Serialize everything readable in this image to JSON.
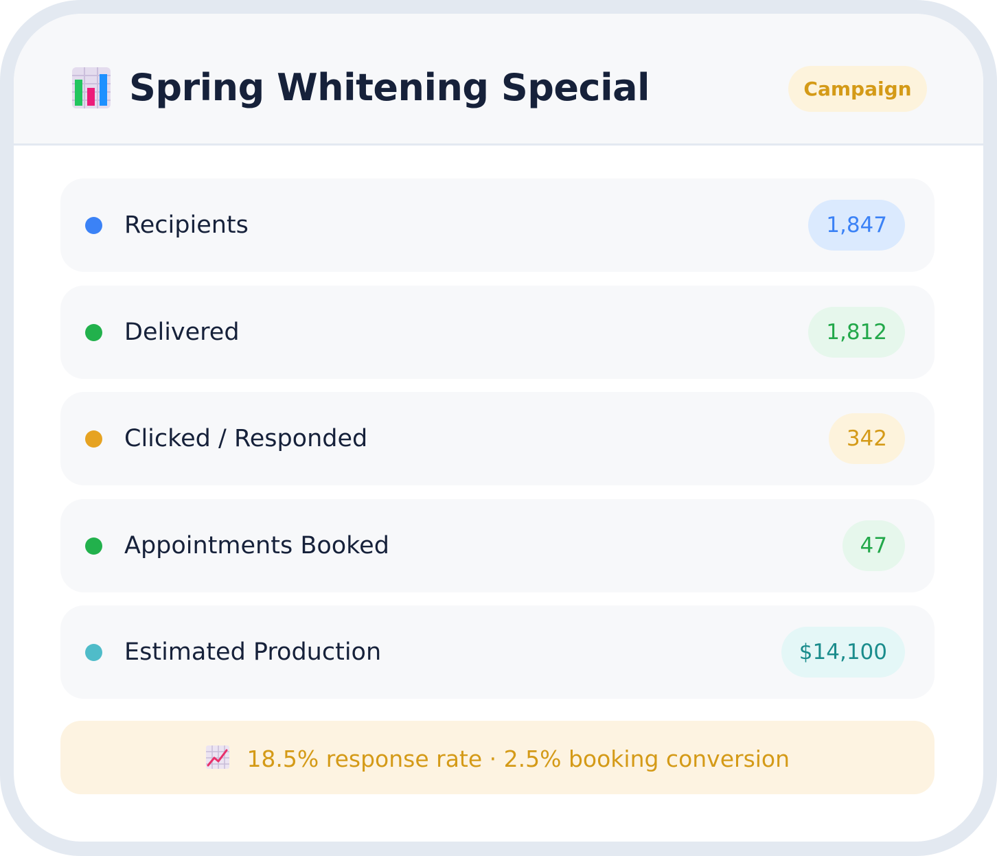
{
  "header": {
    "icon": "bar-chart-icon",
    "title": "Spring Whitening Special",
    "badge": "Campaign",
    "badge_color": "#d49a17"
  },
  "metrics": [
    {
      "label": "Recipients",
      "value": "1,847",
      "dot_color": "#3b82f6",
      "value_color": "#3b82f6",
      "value_bg": "#dbeafe"
    },
    {
      "label": "Delivered",
      "value": "1,812",
      "dot_color": "#22b14c",
      "value_color": "#22a84a",
      "value_bg": "#e6f7ec"
    },
    {
      "label": "Clicked / Responded",
      "value": "342",
      "dot_color": "#e6a322",
      "value_color": "#d49a17",
      "value_bg": "#fdf3dc"
    },
    {
      "label": "Appointments Booked",
      "value": "47",
      "dot_color": "#22b14c",
      "value_color": "#22a84a",
      "value_bg": "#e6f7ec"
    },
    {
      "label": "Estimated Production",
      "value": "$14,100",
      "dot_color": "#4fbcc9",
      "value_color": "#1a8c8c",
      "value_bg": "#e4f7f7"
    }
  ],
  "footer": {
    "icon": "chart-increasing-icon",
    "text": "18.5% response rate · 2.5% booking conversion"
  }
}
